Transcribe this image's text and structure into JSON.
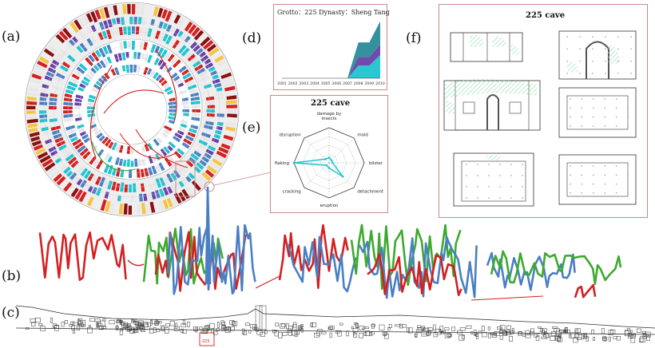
{
  "labels": {
    "a": "(a)",
    "b": "(b)",
    "c": "(c)",
    "d": "(d)",
    "e": "(e)",
    "f": "(f)"
  },
  "panel_d": {
    "title": "Grotto：225 Dynasty：Sheng Tang"
  },
  "panel_e": {
    "title": "225  cave"
  },
  "panel_f": {
    "title": "225  cave"
  },
  "panel_c": {
    "marker": "225"
  },
  "colors": {
    "red": "#d42020",
    "blue": "#4a7fc4",
    "green": "#3caa2e",
    "cyan": "#1fc4d0",
    "purple": "#6a3fa8",
    "teal": "#2a8a9a",
    "frame": "#c98a8a",
    "hatch": "#9adfb7"
  },
  "chart_data": [
    {
      "type": "area",
      "x": [
        2001,
        2002,
        2003,
        2004,
        2005,
        2006,
        2007,
        2008,
        2009,
        2010
      ],
      "tick_labels": [
        "2001",
        "2002",
        "2003",
        "2004",
        "2005",
        "2006",
        "2007",
        "2008",
        "2009",
        "2010"
      ],
      "series": [
        {
          "values": [
            0,
            0,
            0,
            0,
            0,
            0,
            0,
            1.2,
            1.2,
            2.2
          ]
        },
        {
          "values": [
            0,
            0,
            0,
            0,
            0,
            0,
            0,
            0.8,
            0.8,
            1.0
          ]
        },
        {
          "values": [
            0,
            0,
            0,
            0,
            0,
            0,
            0,
            1.4,
            1.4,
            2.2
          ]
        }
      ],
      "ylim": [
        0,
        5.6
      ],
      "legend": "none"
    },
    {
      "type": "radar",
      "axes": [
        "damage by insects",
        "mold",
        "blister",
        "detachment",
        "eruption",
        "cracking",
        "flaking",
        "disruption"
      ],
      "series": [
        {
          "values": [
            0.15,
            0.1,
            0.1,
            0.55,
            0.15,
            0.1,
            1.0,
            0.15
          ]
        }
      ],
      "rlim": [
        0,
        1
      ]
    }
  ]
}
